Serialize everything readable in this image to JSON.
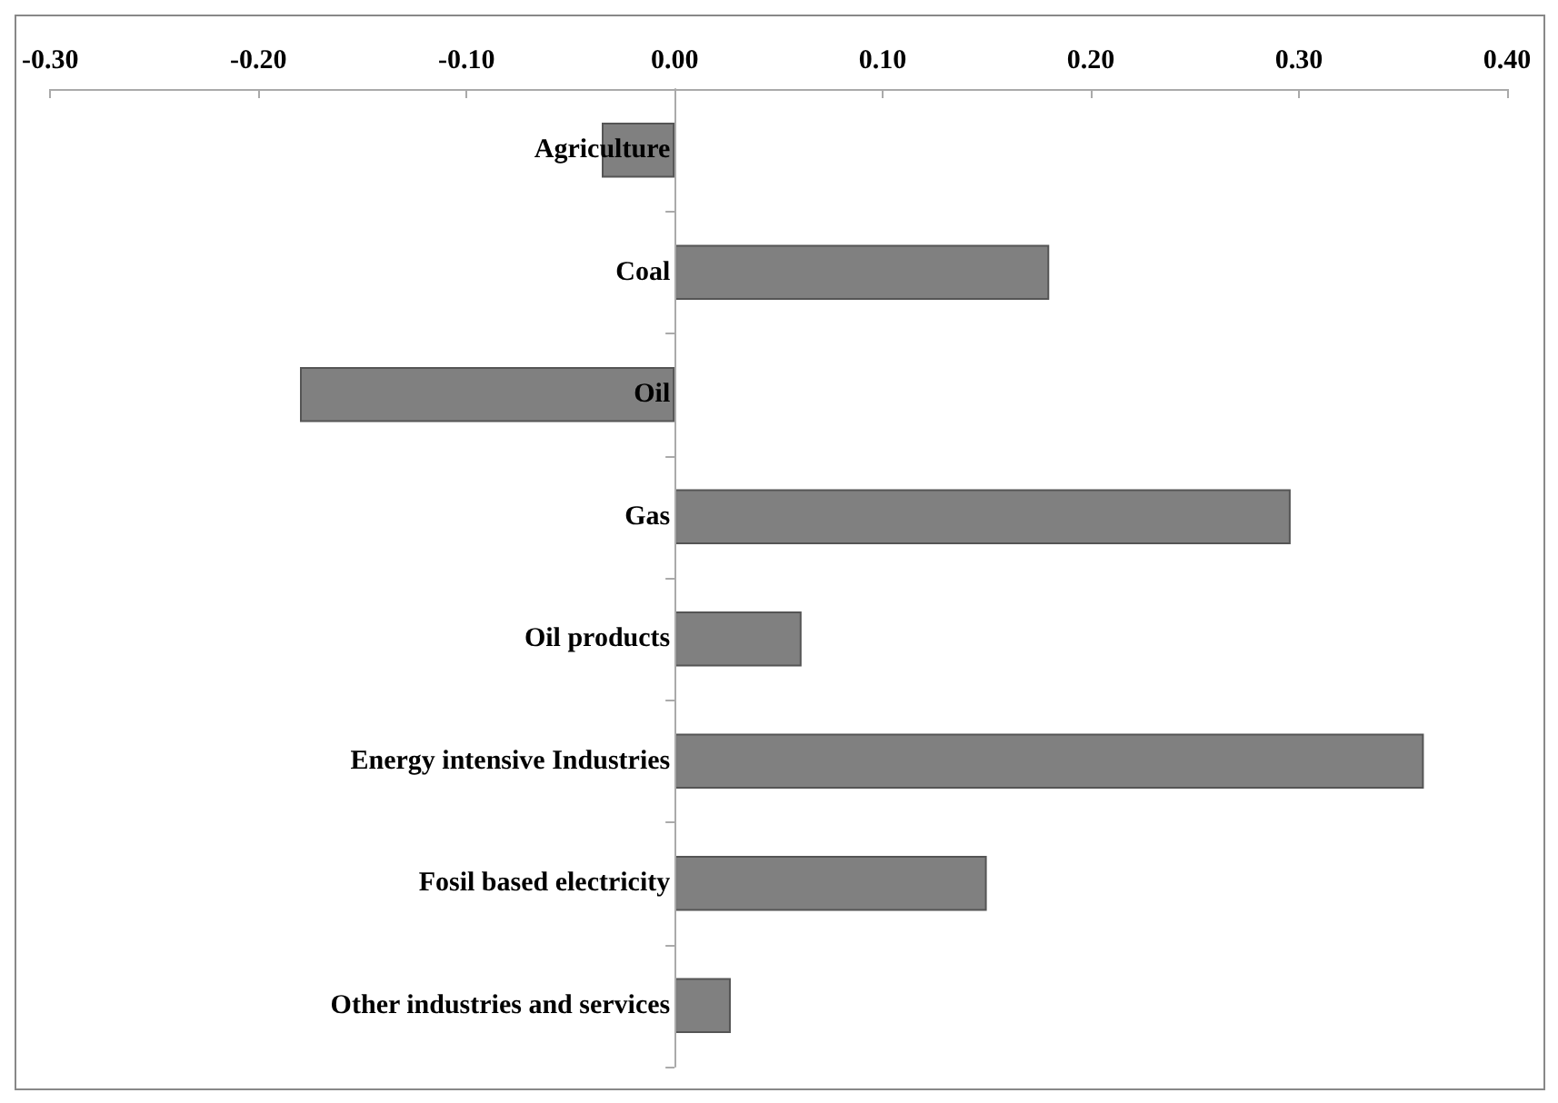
{
  "chart_data": {
    "type": "bar",
    "orientation": "horizontal",
    "categories": [
      "Agriculture",
      "Coal",
      "Oil",
      "Gas",
      "Oil products",
      "Energy intensive Industries",
      "Fosil based electricity",
      "Other industries and services"
    ],
    "values": [
      -0.035,
      0.18,
      -0.18,
      0.296,
      0.061,
      0.36,
      0.15,
      0.027
    ],
    "color": "#808080",
    "xlim": [
      -0.3,
      0.4
    ],
    "xticks": [
      {
        "value": -0.3,
        "label": "-0.30"
      },
      {
        "value": -0.2,
        "label": "-0.20"
      },
      {
        "value": -0.1,
        "label": "-0.10"
      },
      {
        "value": 0,
        "label": "0.00"
      },
      {
        "value": 0.1,
        "label": "0.10"
      },
      {
        "value": 0.2,
        "label": "0.20"
      },
      {
        "value": 0.3,
        "label": "0.30"
      },
      {
        "value": 0.4,
        "label": "0.40"
      }
    ],
    "data_labels": false
  }
}
